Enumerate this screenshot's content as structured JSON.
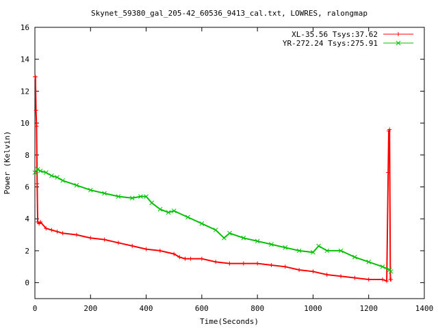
{
  "chart_data": {
    "type": "line",
    "title": "Skynet_59380_gal_205-42_60536_9413_cal.txt, LOWRES, ralongmap",
    "xlabel": "Time(Seconds)",
    "ylabel": "Power (Kelvin)",
    "xlim": [
      0,
      1400
    ],
    "ylim": [
      -1,
      16
    ],
    "xticks": [
      0,
      200,
      400,
      600,
      800,
      1000,
      1200,
      1400
    ],
    "yticks": [
      0,
      2,
      4,
      6,
      8,
      10,
      12,
      14,
      16
    ],
    "grid": false,
    "legend_position": "top-right",
    "series": [
      {
        "name": "XL-35.56 Tsys:37.62",
        "color": "#ff0000",
        "marker": "plus",
        "x": [
          0,
          2,
          4,
          6,
          8,
          10,
          15,
          20,
          40,
          60,
          80,
          100,
          150,
          200,
          250,
          300,
          350,
          400,
          450,
          500,
          520,
          540,
          560,
          600,
          650,
          700,
          750,
          800,
          850,
          900,
          950,
          1000,
          1050,
          1100,
          1150,
          1200,
          1250,
          1265,
          1270,
          1272,
          1275,
          1278,
          1280
        ],
        "y": [
          12.9,
          12.9,
          10.8,
          9.8,
          6.2,
          3.8,
          3.7,
          3.8,
          3.4,
          3.3,
          3.2,
          3.1,
          3.0,
          2.8,
          2.7,
          2.5,
          2.3,
          2.1,
          2.0,
          1.8,
          1.6,
          1.5,
          1.5,
          1.5,
          1.3,
          1.2,
          1.2,
          1.2,
          1.1,
          1.0,
          0.8,
          0.7,
          0.5,
          0.4,
          0.3,
          0.2,
          0.2,
          0.1,
          6.9,
          9.5,
          9.6,
          0.2,
          0.2
        ]
      },
      {
        "name": "YR-272.24 Tsys:275.91",
        "color": "#00c000",
        "marker": "cross",
        "x": [
          0,
          10,
          20,
          40,
          60,
          80,
          100,
          150,
          200,
          250,
          300,
          350,
          380,
          400,
          420,
          450,
          480,
          500,
          550,
          600,
          650,
          680,
          700,
          750,
          800,
          850,
          900,
          950,
          1000,
          1020,
          1050,
          1100,
          1150,
          1200,
          1250,
          1275,
          1280
        ],
        "y": [
          6.9,
          7.1,
          7.0,
          6.9,
          6.7,
          6.6,
          6.4,
          6.1,
          5.8,
          5.6,
          5.4,
          5.3,
          5.4,
          5.4,
          5.0,
          4.6,
          4.4,
          4.5,
          4.1,
          3.7,
          3.3,
          2.8,
          3.1,
          2.8,
          2.6,
          2.4,
          2.2,
          2.0,
          1.9,
          2.3,
          2.0,
          2.0,
          1.6,
          1.3,
          1.0,
          0.8,
          0.7
        ]
      }
    ]
  }
}
